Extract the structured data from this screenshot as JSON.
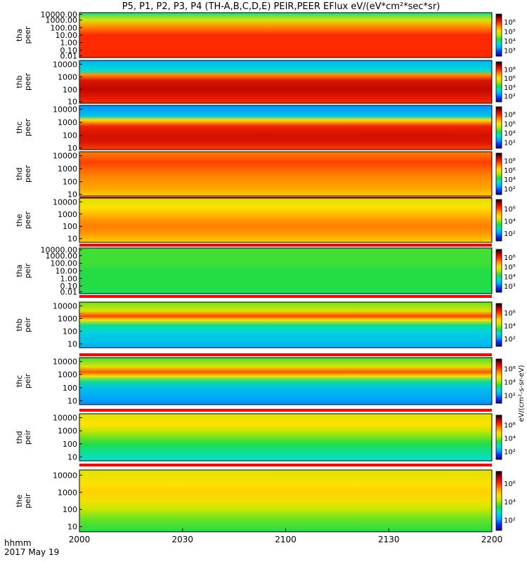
{
  "chart_data": {
    "type": "heatmap",
    "title": "P5, P1, P2, P3, P4 (TH-A,B,C,D,E) PEIR,PEER EFlux eV/(eV*cm²*sec*sr)",
    "x_tick_labels": [
      "2000",
      "2030",
      "2100",
      "2130",
      "2200"
    ],
    "x_time_ticks": [
      "20:00",
      "20:30",
      "21:00",
      "21:30",
      "22:00"
    ],
    "x_range": [
      "20:00",
      "22:00"
    ],
    "x_axis_label": "hhmm",
    "date_label": "2017 May 19",
    "colorbar_unit_label": "eV/(cm²-s-sr-eV)",
    "colormap": [
      "#1a0088",
      "#0033ff",
      "#00a8ff",
      "#00e0d0",
      "#22dd44",
      "#b8e800",
      "#ffe000",
      "#ff9500",
      "#ff2a00",
      "#b40000",
      "#000000"
    ],
    "panels": [
      {
        "probe": "tha",
        "species": "peer",
        "yticks": [
          "10000.00",
          "1000.00",
          "100.00",
          "10.00",
          "1.00",
          "0.10",
          "0.01"
        ],
        "ylog_range": [
          0.01,
          10000
        ],
        "colorbar_ticks": [
          "10⁶",
          "10⁵",
          "10⁴",
          "10³"
        ],
        "has_flag_bar": false,
        "profile": [
          [
            10000,
            0.35
          ],
          [
            1000,
            0.55
          ],
          [
            100,
            0.72
          ],
          [
            10,
            0.8
          ],
          [
            1,
            0.8
          ],
          [
            0.1,
            0.8
          ],
          [
            0.01,
            0.8
          ]
        ]
      },
      {
        "probe": "thb",
        "species": "peer",
        "yticks": [
          "10000",
          "1000",
          "100",
          "10"
        ],
        "ylog_range": [
          8,
          20000
        ],
        "colorbar_ticks": [
          "10⁸",
          "10⁶",
          "10⁴",
          "10²"
        ],
        "has_flag_bar": false,
        "profile": [
          [
            20000,
            0.22
          ],
          [
            3000,
            0.3
          ],
          [
            1500,
            0.7
          ],
          [
            500,
            0.85
          ],
          [
            100,
            0.88
          ],
          [
            30,
            0.85
          ],
          [
            8,
            0.8
          ]
        ]
      },
      {
        "probe": "thc",
        "species": "peer",
        "yticks": [
          "10000",
          "1000",
          "100",
          "10"
        ],
        "ylog_range": [
          8,
          20000
        ],
        "colorbar_ticks": [
          "10⁸",
          "10⁶",
          "10⁴",
          "10²"
        ],
        "has_flag_bar": false,
        "profile": [
          [
            20000,
            0.18
          ],
          [
            3000,
            0.25
          ],
          [
            1500,
            0.6
          ],
          [
            500,
            0.82
          ],
          [
            100,
            0.86
          ],
          [
            30,
            0.85
          ],
          [
            8,
            0.78
          ]
        ]
      },
      {
        "probe": "thd",
        "species": "peer",
        "yticks": [
          "10000",
          "1000",
          "100",
          "10"
        ],
        "ylog_range": [
          8,
          20000
        ],
        "colorbar_ticks": [
          "10⁸",
          "10⁶",
          "10⁴",
          "10²"
        ],
        "has_flag_bar": true,
        "profile": [
          [
            20000,
            0.72
          ],
          [
            3000,
            0.78
          ],
          [
            1000,
            0.75
          ],
          [
            300,
            0.72
          ],
          [
            100,
            0.7
          ],
          [
            30,
            0.68
          ],
          [
            8,
            0.62
          ]
        ]
      },
      {
        "probe": "the",
        "species": "peer",
        "yticks": [
          "10000",
          "1000",
          "100",
          "10"
        ],
        "ylog_range": [
          5,
          20000
        ],
        "colorbar_ticks": [
          "10⁶",
          "10⁴",
          "10²"
        ],
        "has_flag_bar": true,
        "profile": [
          [
            20000,
            0.55
          ],
          [
            3000,
            0.6
          ],
          [
            1000,
            0.65
          ],
          [
            300,
            0.7
          ],
          [
            100,
            0.72
          ],
          [
            30,
            0.7
          ],
          [
            5,
            0.62
          ]
        ]
      },
      {
        "probe": "tha",
        "species": "peir",
        "yticks": [
          "10000.00",
          "1000.00",
          "100.00",
          "10.00",
          "1.00",
          "0.10",
          "0.01"
        ],
        "ylog_range": [
          0.01,
          10000
        ],
        "colorbar_ticks": [
          "10⁶",
          "10⁵",
          "10⁴",
          "10³"
        ],
        "has_flag_bar": true,
        "profile": [
          [
            10000,
            0.42
          ],
          [
            1000,
            0.42
          ],
          [
            100,
            0.42
          ],
          [
            10,
            0.4
          ],
          [
            1,
            0.4
          ],
          [
            0.1,
            0.4
          ],
          [
            0.01,
            0.38
          ]
        ]
      },
      {
        "probe": "thb",
        "species": "peir",
        "yticks": [
          "10000",
          "1000",
          "100",
          "10"
        ],
        "ylog_range": [
          5,
          20000
        ],
        "colorbar_ticks": [
          "10⁶",
          "10⁴",
          "10²"
        ],
        "has_flag_bar": true,
        "profile": [
          [
            20000,
            0.45
          ],
          [
            4000,
            0.55
          ],
          [
            1500,
            0.78
          ],
          [
            800,
            0.6
          ],
          [
            300,
            0.35
          ],
          [
            100,
            0.28
          ],
          [
            5,
            0.22
          ]
        ]
      },
      {
        "probe": "thc",
        "species": "peir",
        "yticks": [
          "10000",
          "1000",
          "100",
          "10"
        ],
        "ylog_range": [
          5,
          20000
        ],
        "colorbar_ticks": [
          "10⁶",
          "10⁴",
          "10²"
        ],
        "has_flag_bar": true,
        "profile": [
          [
            20000,
            0.42
          ],
          [
            4000,
            0.55
          ],
          [
            1500,
            0.76
          ],
          [
            800,
            0.6
          ],
          [
            300,
            0.35
          ],
          [
            100,
            0.25
          ],
          [
            5,
            0.18
          ]
        ]
      },
      {
        "probe": "thd",
        "species": "peir",
        "yticks": [
          "10000",
          "1000",
          "100",
          "10"
        ],
        "ylog_range": [
          5,
          20000
        ],
        "colorbar_ticks": [
          "10⁶",
          "10⁴",
          "10²"
        ],
        "has_flag_bar": true,
        "profile": [
          [
            20000,
            0.55
          ],
          [
            3000,
            0.6
          ],
          [
            1000,
            0.52
          ],
          [
            300,
            0.45
          ],
          [
            100,
            0.4
          ],
          [
            30,
            0.35
          ],
          [
            5,
            0.3
          ]
        ]
      },
      {
        "probe": "the",
        "species": "peir",
        "yticks": [
          "10000",
          "1000",
          "100",
          "10"
        ],
        "ylog_range": [
          5,
          20000
        ],
        "colorbar_ticks": [
          "10⁶",
          "10⁴",
          "10²"
        ],
        "has_flag_bar": true,
        "profile": [
          [
            20000,
            0.55
          ],
          [
            3000,
            0.6
          ],
          [
            1000,
            0.62
          ],
          [
            300,
            0.58
          ],
          [
            100,
            0.52
          ],
          [
            30,
            0.45
          ],
          [
            5,
            0.4
          ]
        ]
      }
    ],
    "flag_colors": {
      "good": "#ff0000",
      "gap": "#ffffff",
      "caution": "#ffff00"
    }
  }
}
